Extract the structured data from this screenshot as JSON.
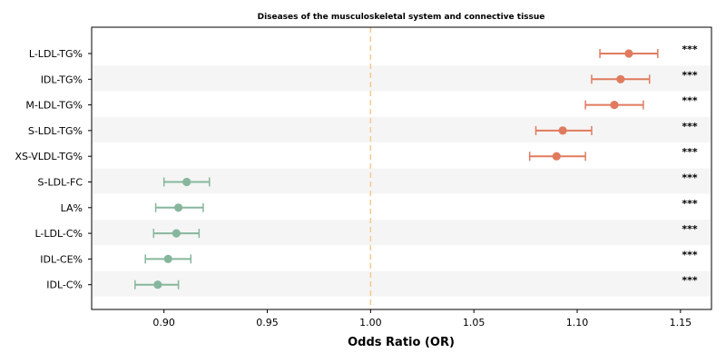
{
  "chart_data": {
    "type": "forest",
    "title": "Diseases of the musculoskeletal system and connective tissue",
    "xlabel": "Odds Ratio (OR)",
    "xlim": [
      0.865,
      1.165
    ],
    "xticks": [
      "0.90",
      "0.95",
      "1.00",
      "1.05",
      "1.10",
      "1.15"
    ],
    "reference_line": 1.0,
    "colors": {
      "positive": "#e07b5f",
      "negative": "#86b79c",
      "reference": "#f5c98a",
      "band": "#f5f5f5"
    },
    "rows": [
      {
        "label": "L-LDL-TG%",
        "or": 1.125,
        "lo": 1.111,
        "hi": 1.139,
        "sig": "***",
        "direction": "positive"
      },
      {
        "label": "IDL-TG%",
        "or": 1.121,
        "lo": 1.107,
        "hi": 1.135,
        "sig": "***",
        "direction": "positive"
      },
      {
        "label": "M-LDL-TG%",
        "or": 1.118,
        "lo": 1.104,
        "hi": 1.132,
        "sig": "***",
        "direction": "positive"
      },
      {
        "label": "S-LDL-TG%",
        "or": 1.093,
        "lo": 1.08,
        "hi": 1.107,
        "sig": "***",
        "direction": "positive"
      },
      {
        "label": "XS-VLDL-TG%",
        "or": 1.09,
        "lo": 1.077,
        "hi": 1.104,
        "sig": "***",
        "direction": "positive"
      },
      {
        "label": "S-LDL-FC",
        "or": 0.911,
        "lo": 0.9,
        "hi": 0.922,
        "sig": "***",
        "direction": "negative"
      },
      {
        "label": "LA%",
        "or": 0.907,
        "lo": 0.896,
        "hi": 0.919,
        "sig": "***",
        "direction": "negative"
      },
      {
        "label": "L-LDL-C%",
        "or": 0.906,
        "lo": 0.895,
        "hi": 0.917,
        "sig": "***",
        "direction": "negative"
      },
      {
        "label": "IDL-CE%",
        "or": 0.902,
        "lo": 0.891,
        "hi": 0.913,
        "sig": "***",
        "direction": "negative"
      },
      {
        "label": "IDL-C%",
        "or": 0.897,
        "lo": 0.886,
        "hi": 0.907,
        "sig": "***",
        "direction": "negative"
      }
    ]
  }
}
